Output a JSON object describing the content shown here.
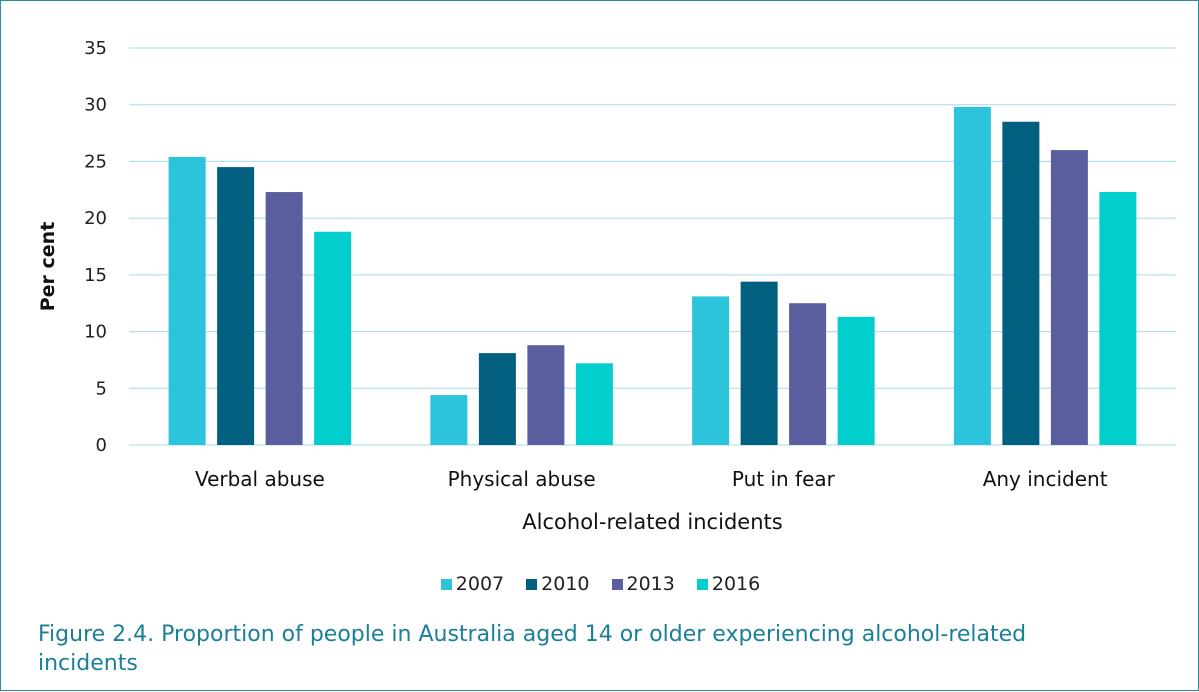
{
  "chart_data": {
    "type": "bar",
    "categories": [
      "Verbal abuse",
      "Physical abuse",
      "Put in fear",
      "Any incident"
    ],
    "series": [
      {
        "name": "2007",
        "color": "#2bc4da",
        "values": [
          25.4,
          4.4,
          13.1,
          29.8
        ]
      },
      {
        "name": "2010",
        "color": "#025f80",
        "values": [
          24.5,
          8.1,
          14.4,
          28.5
        ]
      },
      {
        "name": "2013",
        "color": "#5a5e9f",
        "values": [
          22.3,
          8.8,
          12.5,
          26.0
        ]
      },
      {
        "name": "2016",
        "color": "#02cfcd",
        "values": [
          18.8,
          7.2,
          11.3,
          22.3
        ]
      }
    ],
    "xlabel": "Alcohol-related incidents",
    "ylabel": "Per cent",
    "ylim": [
      0,
      35
    ],
    "yticks": [
      0,
      5,
      10,
      15,
      20,
      25,
      30,
      35
    ],
    "grid": true,
    "legend_position": "bottom-center",
    "gridline_color": "#a6dbe7"
  },
  "caption": "Figure 2.4. Proportion of people in Australia aged 14 or older experiencing alcohol-related incidents"
}
